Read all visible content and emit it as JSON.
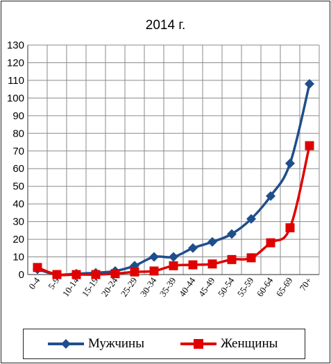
{
  "chart_data": {
    "type": "line",
    "title": "2014 г.",
    "categories": [
      "0-4",
      "5-9",
      "10-14",
      "15-19",
      "20-24",
      "25-29",
      "30-34",
      "35-39",
      "40-44",
      "45-49",
      "50-54",
      "55-59",
      "60-64",
      "65-69",
      "70+"
    ],
    "ylim": [
      0,
      130
    ],
    "yticks": [
      0,
      10,
      20,
      30,
      40,
      50,
      60,
      70,
      80,
      90,
      100,
      110,
      120,
      130
    ],
    "grid": true,
    "legend_position": "bottom",
    "series": [
      {
        "name": "Мужчины",
        "color": "#1f4e8c",
        "marker": "diamond",
        "values": [
          3,
          0,
          0.5,
          1,
          2,
          5,
          10,
          10,
          15,
          18.5,
          23,
          31.5,
          44.5,
          63,
          108
        ]
      },
      {
        "name": "Женщины",
        "color": "#e00000",
        "marker": "square",
        "values": [
          4,
          0,
          0,
          0,
          0.5,
          1.5,
          2,
          5,
          5.5,
          6,
          8.5,
          9.5,
          18,
          26.5,
          73
        ]
      }
    ]
  }
}
